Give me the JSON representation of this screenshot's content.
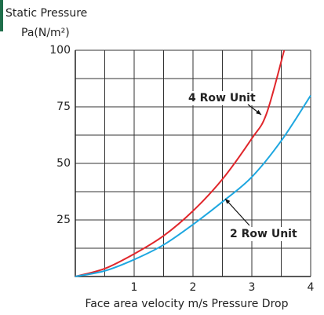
{
  "chart_data": {
    "type": "line",
    "title": "Static Pressure",
    "y_label": "Pa(N/m²)",
    "x_label": "Face area velocity m/s Pressure Drop",
    "xlim": [
      0,
      4
    ],
    "ylim": [
      0,
      100
    ],
    "xticks": [
      1,
      2,
      3,
      4
    ],
    "yticks": [
      25,
      50,
      75,
      100
    ],
    "grid": true,
    "minor_grid": true,
    "series": [
      {
        "name": "4 Row Unit",
        "color": "#e0262b",
        "x": [
          0,
          0.5,
          1,
          1.5,
          2,
          2.5,
          3,
          3.25,
          3.55
        ],
        "values": [
          0,
          3.5,
          10,
          18,
          29,
          43,
          61,
          72,
          100
        ]
      },
      {
        "name": "2 Row Unit",
        "color": "#1ea7e0",
        "x": [
          0,
          0.5,
          1,
          1.5,
          2,
          2.5,
          3,
          3.5,
          4
        ],
        "values": [
          0,
          2.5,
          7.5,
          14,
          23,
          33,
          44,
          60,
          80
        ]
      }
    ]
  }
}
